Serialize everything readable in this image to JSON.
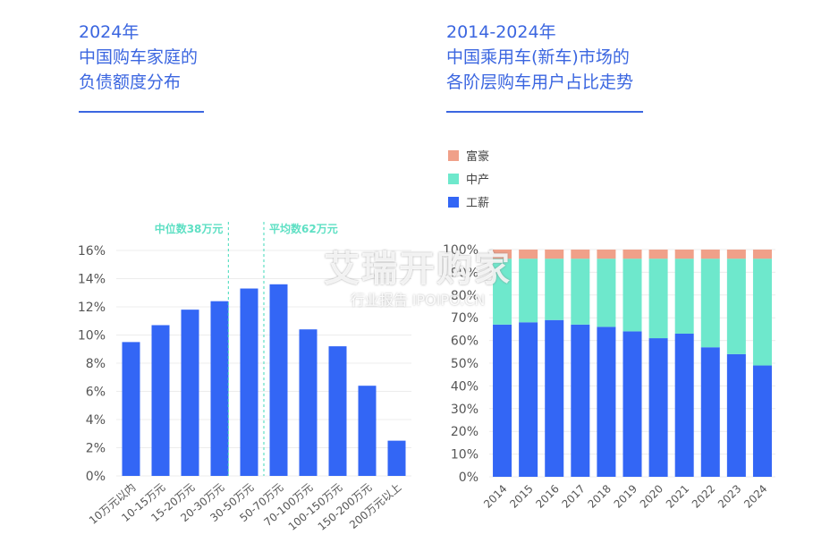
{
  "left_title": {
    "line1": "2024年",
    "line2": "中国购车家庭的",
    "line3": "负债额度分布"
  },
  "right_title": {
    "line1": "2014-2024年",
    "line2": "中国乘用车(新车)市场的",
    "line3": "各阶层购车用户占比走势"
  },
  "watermark": {
    "brand": "艾瑞开购家",
    "sub": "行业报告 IPOIPO.CN"
  },
  "colors": {
    "accent": "#3b66e0",
    "bar": "#3366f5",
    "mid": "#6ee8cc",
    "rich": "#f0a089",
    "annotation": "#5fe0c4"
  },
  "chart_data": [
    {
      "type": "bar",
      "title": "中国购车家庭的负债额度分布",
      "categories": [
        "10万元以内",
        "10-15万元",
        "15-20万元",
        "20-30万元",
        "30-50万元",
        "50-70万元",
        "70-100万元",
        "100-150万元",
        "150-200万元",
        "200万元以上"
      ],
      "values": [
        9.5,
        10.7,
        11.8,
        12.4,
        13.3,
        13.6,
        10.4,
        9.2,
        6.4,
        2.5
      ],
      "yunit": "%",
      "ylim": [
        0,
        16
      ],
      "yticks": [
        0,
        2,
        4,
        6,
        8,
        10,
        12,
        14,
        16
      ],
      "grid": true,
      "annotations": [
        {
          "label": "中位数38万元",
          "x_position": 3.8
        },
        {
          "label": "平均数62万元",
          "x_position": 5.0
        }
      ]
    },
    {
      "type": "bar",
      "stacked": true,
      "title": "中国乘用车(新车)市场的各阶层购车用户占比走势",
      "categories": [
        "2014",
        "2015",
        "2016",
        "2017",
        "2018",
        "2019",
        "2020",
        "2021",
        "2022",
        "2023",
        "2024"
      ],
      "series": [
        {
          "name": "工薪",
          "values": [
            67,
            68,
            69,
            67,
            66,
            64,
            61,
            63,
            57,
            54,
            49
          ]
        },
        {
          "name": "中产",
          "values": [
            29,
            28,
            27,
            29,
            30,
            32,
            35,
            33,
            39,
            42,
            47
          ]
        },
        {
          "name": "富豪",
          "values": [
            4,
            4,
            4,
            4,
            4,
            4,
            4,
            4,
            4,
            4,
            4
          ]
        }
      ],
      "yunit": "%",
      "ylim": [
        0,
        100
      ],
      "yticks": [
        0,
        10,
        20,
        30,
        40,
        50,
        60,
        70,
        80,
        90,
        100
      ],
      "legend": "top-left",
      "legend_order": [
        "富豪",
        "中产",
        "工薪"
      ]
    }
  ]
}
